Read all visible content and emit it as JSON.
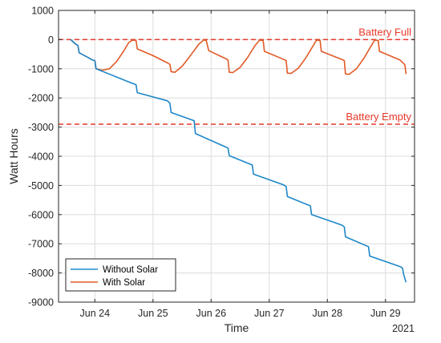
{
  "chart_data": {
    "type": "line",
    "xlabel": "Time",
    "ylabel": "Watt Hours",
    "x_secondary_label": "2021",
    "xlim": [
      "2021-06-23 09:00",
      "2021-06-29 12:00"
    ],
    "ylim": [
      -9000,
      1000
    ],
    "x_ticks": [
      {
        "value": "2021-06-24",
        "label": "Jun 24"
      },
      {
        "value": "2021-06-25",
        "label": "Jun 25"
      },
      {
        "value": "2021-06-26",
        "label": "Jun 26"
      },
      {
        "value": "2021-06-27",
        "label": "Jun 27"
      },
      {
        "value": "2021-06-28",
        "label": "Jun 28"
      },
      {
        "value": "2021-06-29",
        "label": "Jun 29"
      }
    ],
    "y_ticks": [
      1000,
      0,
      -1000,
      -2000,
      -3000,
      -4000,
      -5000,
      -6000,
      -7000,
      -8000,
      -9000
    ],
    "grid": true,
    "legend_position": "bottom-left",
    "reference_lines": [
      {
        "label": "Battery Full",
        "y": 0,
        "color": "#e8382a"
      },
      {
        "label": "Battery Empty",
        "y": -2900,
        "color": "#e8382a"
      }
    ],
    "series": [
      {
        "name": "Without Solar",
        "color": "#1d87c8",
        "points": [
          [
            "2021-06-23 14:00",
            0
          ],
          [
            "2021-06-23 16:00",
            -150
          ],
          [
            "2021-06-23 17:00",
            -200
          ],
          [
            "2021-06-23 17:30",
            -450
          ],
          [
            "2021-06-23 22:00",
            -650
          ],
          [
            "2021-06-23 23:00",
            -700
          ],
          [
            "2021-06-24 00:00",
            -720
          ],
          [
            "2021-06-24 00:30",
            -1000
          ],
          [
            "2021-06-24 14:00",
            -1450
          ],
          [
            "2021-06-24 17:00",
            -1550
          ],
          [
            "2021-06-24 17:30",
            -1820
          ],
          [
            "2021-06-25 06:00",
            -2100
          ],
          [
            "2021-06-25 07:00",
            -2180
          ],
          [
            "2021-06-25 07:30",
            -2500
          ],
          [
            "2021-06-25 17:00",
            -2780
          ],
          [
            "2021-06-25 17:30",
            -3220
          ],
          [
            "2021-06-26 06:00",
            -3680
          ],
          [
            "2021-06-26 07:00",
            -3720
          ],
          [
            "2021-06-26 07:30",
            -3980
          ],
          [
            "2021-06-26 17:00",
            -4300
          ],
          [
            "2021-06-26 17:30",
            -4610
          ],
          [
            "2021-06-27 06:00",
            -4980
          ],
          [
            "2021-06-27 07:00",
            -5040
          ],
          [
            "2021-06-27 07:30",
            -5380
          ],
          [
            "2021-06-27 17:00",
            -5700
          ],
          [
            "2021-06-27 17:30",
            -6000
          ],
          [
            "2021-06-28 06:00",
            -6360
          ],
          [
            "2021-06-28 07:00",
            -6420
          ],
          [
            "2021-06-28 07:30",
            -6760
          ],
          [
            "2021-06-28 17:00",
            -7100
          ],
          [
            "2021-06-28 17:30",
            -7420
          ],
          [
            "2021-06-29 06:00",
            -7780
          ],
          [
            "2021-06-29 07:00",
            -7830
          ],
          [
            "2021-06-29 07:30",
            -8050
          ],
          [
            "2021-06-29 08:30",
            -8320
          ]
        ]
      },
      {
        "name": "With Solar",
        "color": "#e15a26",
        "points": [
          [
            "2021-06-23 14:00",
            0
          ],
          [
            "2021-06-23 16:00",
            -150
          ],
          [
            "2021-06-23 17:00",
            -200
          ],
          [
            "2021-06-23 17:30",
            -450
          ],
          [
            "2021-06-23 22:00",
            -650
          ],
          [
            "2021-06-23 23:00",
            -700
          ],
          [
            "2021-06-24 00:00",
            -720
          ],
          [
            "2021-06-24 00:30",
            -1000
          ],
          [
            "2021-06-24 03:00",
            -1050
          ],
          [
            "2021-06-24 06:00",
            -1000
          ],
          [
            "2021-06-24 09:00",
            -750
          ],
          [
            "2021-06-24 12:00",
            -380
          ],
          [
            "2021-06-24 14:00",
            -100
          ],
          [
            "2021-06-24 15:30",
            -20
          ],
          [
            "2021-06-24 17:00",
            -30
          ],
          [
            "2021-06-24 17:30",
            -320
          ],
          [
            "2021-06-25 00:00",
            -550
          ],
          [
            "2021-06-25 06:00",
            -800
          ],
          [
            "2021-06-25 07:00",
            -850
          ],
          [
            "2021-06-25 07:30",
            -1100
          ],
          [
            "2021-06-25 09:00",
            -1120
          ],
          [
            "2021-06-25 12:00",
            -920
          ],
          [
            "2021-06-25 15:00",
            -600
          ],
          [
            "2021-06-25 19:00",
            -150
          ],
          [
            "2021-06-25 21:00",
            -10
          ],
          [
            "2021-06-25 22:00",
            -30
          ],
          [
            "2021-06-25 23:00",
            -380
          ],
          [
            "2021-06-26 06:00",
            -650
          ],
          [
            "2021-06-26 07:00",
            -700
          ],
          [
            "2021-06-26 07:30",
            -1120
          ],
          [
            "2021-06-26 09:00",
            -1130
          ],
          [
            "2021-06-26 12:00",
            -950
          ],
          [
            "2021-06-26 15:00",
            -620
          ],
          [
            "2021-06-26 18:00",
            -220
          ],
          [
            "2021-06-26 20:00",
            -20
          ],
          [
            "2021-06-26 21:30",
            -30
          ],
          [
            "2021-06-26 22:00",
            -400
          ],
          [
            "2021-06-27 06:00",
            -680
          ],
          [
            "2021-06-27 07:00",
            -720
          ],
          [
            "2021-06-27 07:30",
            -1150
          ],
          [
            "2021-06-27 09:00",
            -1160
          ],
          [
            "2021-06-27 12:00",
            -980
          ],
          [
            "2021-06-27 15:00",
            -640
          ],
          [
            "2021-06-27 18:00",
            -230
          ],
          [
            "2021-06-27 19:30",
            -20
          ],
          [
            "2021-06-27 21:00",
            -30
          ],
          [
            "2021-06-27 21:30",
            -400
          ],
          [
            "2021-06-28 06:00",
            -680
          ],
          [
            "2021-06-28 07:00",
            -720
          ],
          [
            "2021-06-28 07:30",
            -1180
          ],
          [
            "2021-06-28 09:00",
            -1190
          ],
          [
            "2021-06-28 12:00",
            -1000
          ],
          [
            "2021-06-28 15:00",
            -650
          ],
          [
            "2021-06-28 18:00",
            -230
          ],
          [
            "2021-06-28 19:30",
            -20
          ],
          [
            "2021-06-28 21:00",
            -30
          ],
          [
            "2021-06-28 21:30",
            -400
          ],
          [
            "2021-06-29 06:00",
            -700
          ],
          [
            "2021-06-29 08:00",
            -860
          ],
          [
            "2021-06-29 08:30",
            -1180
          ]
        ]
      }
    ]
  }
}
